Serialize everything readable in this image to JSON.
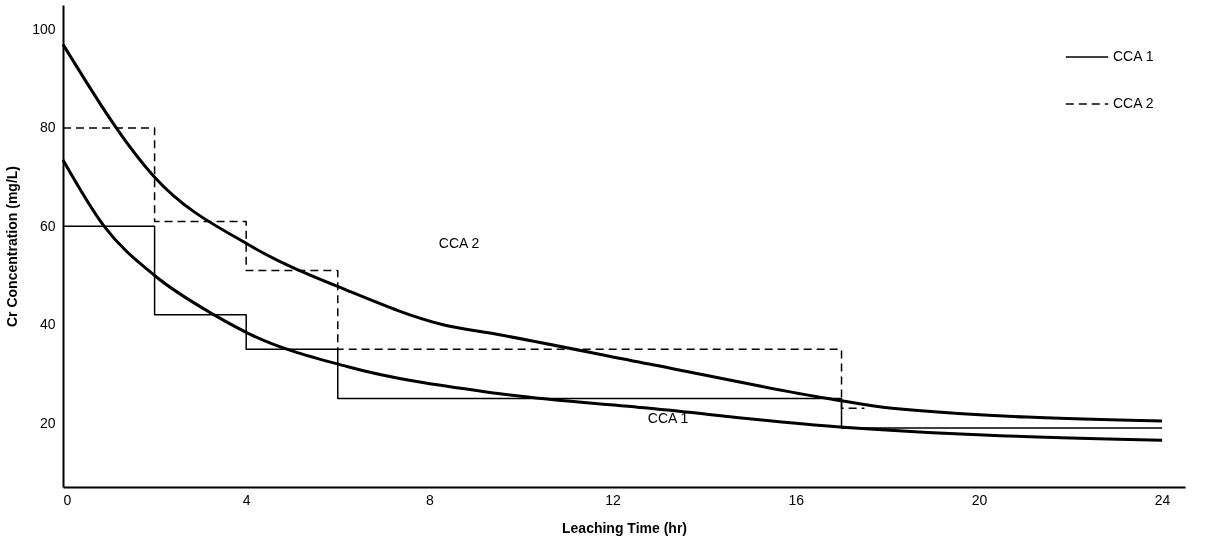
{
  "chart_data": {
    "type": "line",
    "xlabel": "Leaching Time (hr)",
    "ylabel": "Cr Concentration (mg/L)",
    "xlim": [
      0,
      24.5
    ],
    "ylim": [
      7,
      105
    ],
    "xticks": [
      0,
      4,
      8,
      12,
      16,
      20,
      24
    ],
    "yticks": [
      20,
      40,
      60,
      80,
      100
    ],
    "grid": false,
    "legend": "top right",
    "marker": "none",
    "series": [
      {
        "name": "CCA 1",
        "type": "step",
        "line_style": "solid",
        "color": "#000000",
        "x": [
          0,
          2,
          4,
          6,
          17,
          24
        ],
        "values": [
          60,
          42,
          35,
          25,
          19,
          19
        ]
      },
      {
        "name": "CCA 2",
        "type": "step",
        "line_style": "dashed",
        "color": "#000000",
        "x": [
          0,
          2,
          4,
          6,
          17,
          17.5
        ],
        "values": [
          80,
          61,
          51,
          35,
          23,
          23
        ]
      },
      {
        "line_style": "solid",
        "color": "#000000",
        "x": [
          0,
          2,
          4.1,
          6.2,
          8.3,
          9.5,
          12.8,
          16.7,
          18.1,
          24
        ],
        "values": [
          97,
          70,
          56,
          47,
          40,
          38,
          32,
          25,
          23,
          20.4
        ]
      },
      {
        "line_style": "solid",
        "color": "#000000",
        "x": [
          0,
          0.9,
          2,
          3.3,
          4.1,
          6.2,
          9.5,
          12.8,
          16.7,
          24
        ],
        "values": [
          73.5,
          60,
          50,
          42,
          38,
          31.5,
          26,
          23,
          19.4,
          16.5
        ]
      }
    ],
    "annotations": [
      "CCA 2",
      "CCA 1"
    ]
  }
}
